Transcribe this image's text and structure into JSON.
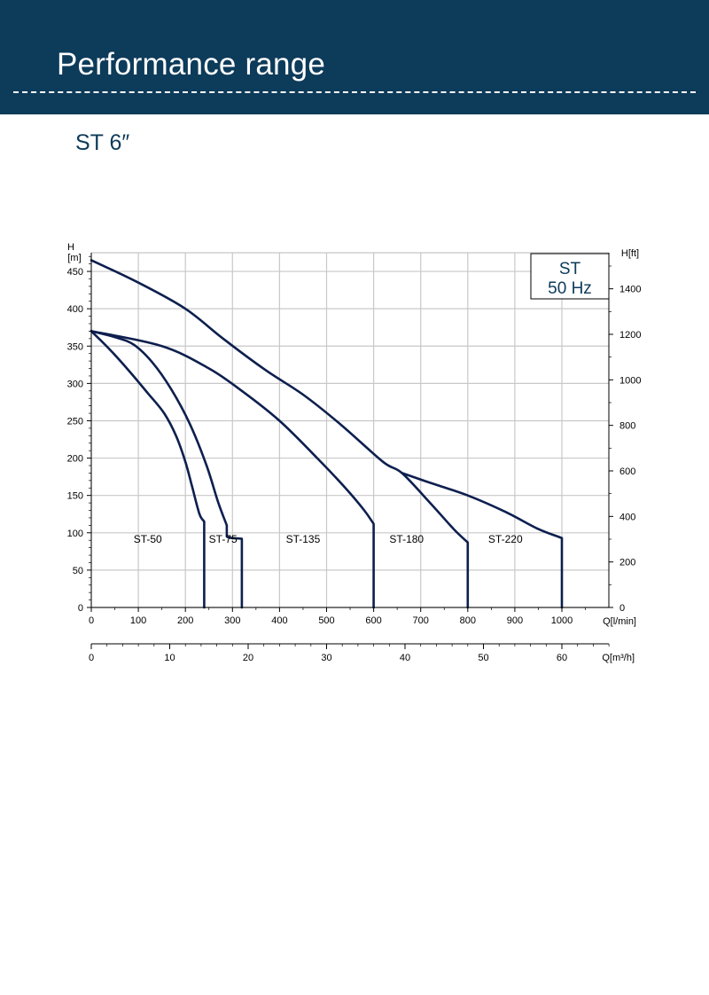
{
  "header": {
    "title": "Performance range"
  },
  "subtitle": "ST 6″",
  "chart_data": {
    "type": "line",
    "ylabel_top": "H",
    "ylabel_unit": "[m]",
    "y2label": "H[ft]",
    "xlabel": "Q[l/min]",
    "x2label": "Q[m³/h]",
    "legend": {
      "line1": "ST",
      "line2": "50 Hz",
      "position": "top-right"
    },
    "grid": true,
    "xlim": [
      0,
      1000
    ],
    "ylim": [
      0,
      475
    ],
    "xticks": [
      0,
      100,
      200,
      300,
      400,
      500,
      600,
      700,
      800,
      900,
      1000
    ],
    "yticks": [
      0,
      50,
      100,
      150,
      200,
      250,
      300,
      350,
      400,
      450
    ],
    "y2ticks": [
      0,
      200,
      400,
      600,
      800,
      1000,
      1200,
      1400
    ],
    "x2ticks": [
      0,
      10,
      20,
      30,
      40,
      50,
      60
    ],
    "color": "#0d1f4e",
    "series": [
      {
        "name": "ST-50",
        "label_at": [
          120,
          75
        ],
        "points": [
          [
            0,
            370
          ],
          [
            40,
            345
          ],
          [
            80,
            317
          ],
          [
            120,
            287
          ],
          [
            155,
            260
          ],
          [
            180,
            230
          ],
          [
            200,
            195
          ],
          [
            215,
            160
          ],
          [
            230,
            125
          ],
          [
            240,
            115
          ],
          [
            240,
            0
          ]
        ]
      },
      {
        "name": "ST-75",
        "label_at": [
          280,
          75
        ],
        "points": [
          [
            0,
            370
          ],
          [
            50,
            362
          ],
          [
            90,
            352
          ],
          [
            130,
            328
          ],
          [
            170,
            292
          ],
          [
            210,
            245
          ],
          [
            245,
            190
          ],
          [
            270,
            140
          ],
          [
            288,
            110
          ],
          [
            288,
            95
          ],
          [
            320,
            92
          ],
          [
            320,
            0
          ]
        ]
      },
      {
        "name": "ST-135",
        "label_at": [
          450,
          75
        ],
        "points": [
          [
            0,
            370
          ],
          [
            150,
            350
          ],
          [
            250,
            320
          ],
          [
            320,
            290
          ],
          [
            400,
            250
          ],
          [
            480,
            200
          ],
          [
            540,
            160
          ],
          [
            580,
            130
          ],
          [
            600,
            112
          ],
          [
            600,
            0
          ]
        ]
      },
      {
        "name": "ST-180",
        "label_at": [
          670,
          75
        ],
        "points": [
          [
            0,
            465
          ],
          [
            100,
            435
          ],
          [
            200,
            400
          ],
          [
            280,
            360
          ],
          [
            370,
            318
          ],
          [
            450,
            285
          ],
          [
            530,
            245
          ],
          [
            620,
            195
          ],
          [
            660,
            180
          ],
          [
            720,
            140
          ],
          [
            770,
            105
          ],
          [
            800,
            87
          ],
          [
            800,
            0
          ]
        ]
      },
      {
        "name": "ST-220",
        "label_at": [
          880,
          75
        ],
        "points": [
          [
            660,
            180
          ],
          [
            720,
            167
          ],
          [
            800,
            150
          ],
          [
            880,
            128
          ],
          [
            950,
            105
          ],
          [
            1000,
            93
          ],
          [
            1000,
            0
          ]
        ]
      }
    ]
  }
}
